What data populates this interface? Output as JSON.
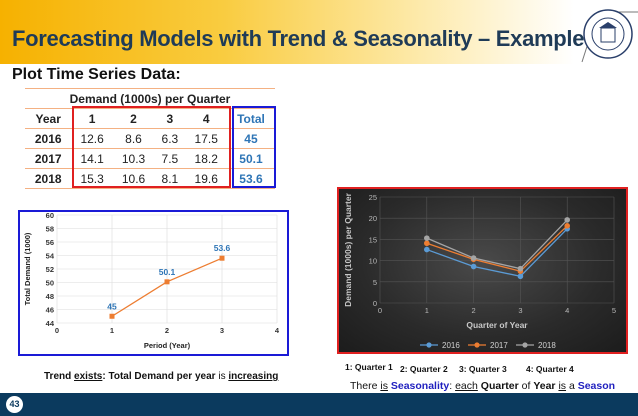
{
  "header": {
    "title": "Forecasting Models with Trend & Seasonality – Example 8",
    "logo_text": "UNIVERSITY OF NEW HAVEN · CONNECTICUT"
  },
  "subtitle": "Plot Time Series Data:",
  "table": {
    "caption": "Demand (1000s) per Quarter",
    "columns": [
      "Year",
      "1",
      "2",
      "3",
      "4",
      "Total"
    ],
    "rows": [
      [
        "2016",
        "12.6",
        "8.6",
        "6.3",
        "17.5",
        "45"
      ],
      [
        "2017",
        "14.1",
        "10.3",
        "7.5",
        "18.2",
        "50.1"
      ],
      [
        "2018",
        "15.3",
        "10.6",
        "8.1",
        "19.6",
        "53.6"
      ]
    ]
  },
  "trend_text": {
    "a": "Trend ",
    "b": "exists",
    "c": ": Total Demand per year ",
    "d": "is ",
    "e": "increasing"
  },
  "quarter_labels": [
    "1: Quarter 1",
    "2: Quarter 2",
    "3: Quarter 3",
    "4: Quarter 4"
  ],
  "season_text": {
    "a": "There ",
    "b": "is",
    "c": " Seasonality",
    "d": ": ",
    "e": "each",
    "f": " Quarter ",
    "g": "of ",
    "h": "Year",
    "i": " ",
    "j": "is",
    "k": " a ",
    "l": "Season"
  },
  "page_number": "43",
  "colors": {
    "title": "#1f3b57",
    "footer": "#0b3a5e",
    "box_blue": "#1a1ad6",
    "box_red": "#e02020",
    "orange": "#ed7d31",
    "blue": "#5b9bd5",
    "gray": "#a5a5a5"
  },
  "chart_data": [
    {
      "type": "line",
      "xlabel": "Period (Year)",
      "ylabel": "Total Demand (1000)",
      "xlim": [
        0,
        4
      ],
      "ylim": [
        44,
        60
      ],
      "xticks": [
        "0",
        "1",
        "2",
        "3",
        "4"
      ],
      "yticks": [
        "44",
        "46",
        "48",
        "50",
        "52",
        "54",
        "56",
        "58",
        "60"
      ],
      "grid": true,
      "x": [
        1,
        2,
        3
      ],
      "values": [
        45,
        50.1,
        53.6
      ],
      "data_labels": [
        "45",
        "50.1",
        "53.6"
      ]
    },
    {
      "type": "line",
      "xlabel": "Quarter of Year",
      "ylabel": "Demand (1000s) per Quarter",
      "xlim": [
        0,
        5
      ],
      "ylim": [
        0,
        25
      ],
      "xticks": [
        "0",
        "1",
        "2",
        "3",
        "4",
        "5"
      ],
      "yticks": [
        "0",
        "5",
        "10",
        "15",
        "20",
        "25"
      ],
      "grid": true,
      "legend": "bottom",
      "x": [
        1,
        2,
        3,
        4
      ],
      "series": [
        {
          "name": "2016",
          "values": [
            12.6,
            8.6,
            6.3,
            17.5
          ],
          "color": "#5b9bd5"
        },
        {
          "name": "2017",
          "values": [
            14.1,
            10.3,
            7.5,
            18.2
          ],
          "color": "#ed7d31"
        },
        {
          "name": "2018",
          "values": [
            15.3,
            10.6,
            8.1,
            19.6
          ],
          "color": "#a5a5a5"
        }
      ]
    }
  ]
}
